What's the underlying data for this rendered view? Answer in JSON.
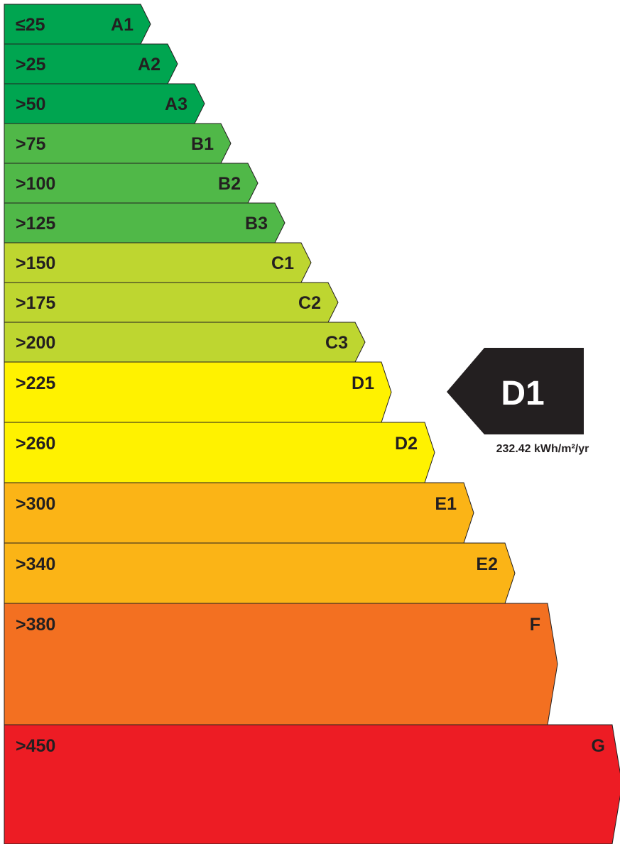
{
  "bands": [
    {
      "range": "≤25",
      "grade": "A1",
      "color": "#00a550"
    },
    {
      "range": ">25",
      "grade": "A2",
      "color": "#00a550"
    },
    {
      "range": ">50",
      "grade": "A3",
      "color": "#00a550"
    },
    {
      "range": ">75",
      "grade": "B1",
      "color": "#50b848"
    },
    {
      "range": ">100",
      "grade": "B2",
      "color": "#50b848"
    },
    {
      "range": ">125",
      "grade": "B3",
      "color": "#50b848"
    },
    {
      "range": ">150",
      "grade": "C1",
      "color": "#bed630"
    },
    {
      "range": ">175",
      "grade": "C2",
      "color": "#bed630"
    },
    {
      "range": ">200",
      "grade": "C3",
      "color": "#bed630"
    },
    {
      "range": ">225",
      "grade": "D1",
      "color": "#fff200"
    },
    {
      "range": ">260",
      "grade": "D2",
      "color": "#fff200"
    },
    {
      "range": ">300",
      "grade": "E1",
      "color": "#fbb416"
    },
    {
      "range": ">340",
      "grade": "E2",
      "color": "#fbb416"
    },
    {
      "range": ">380",
      "grade": "F",
      "color": "#f37021"
    },
    {
      "range": ">450",
      "grade": "G",
      "color": "#ed1c24"
    }
  ],
  "rating": {
    "grade": "D1",
    "value": "232.42 kWh/m²/yr",
    "color": "#231f20"
  }
}
